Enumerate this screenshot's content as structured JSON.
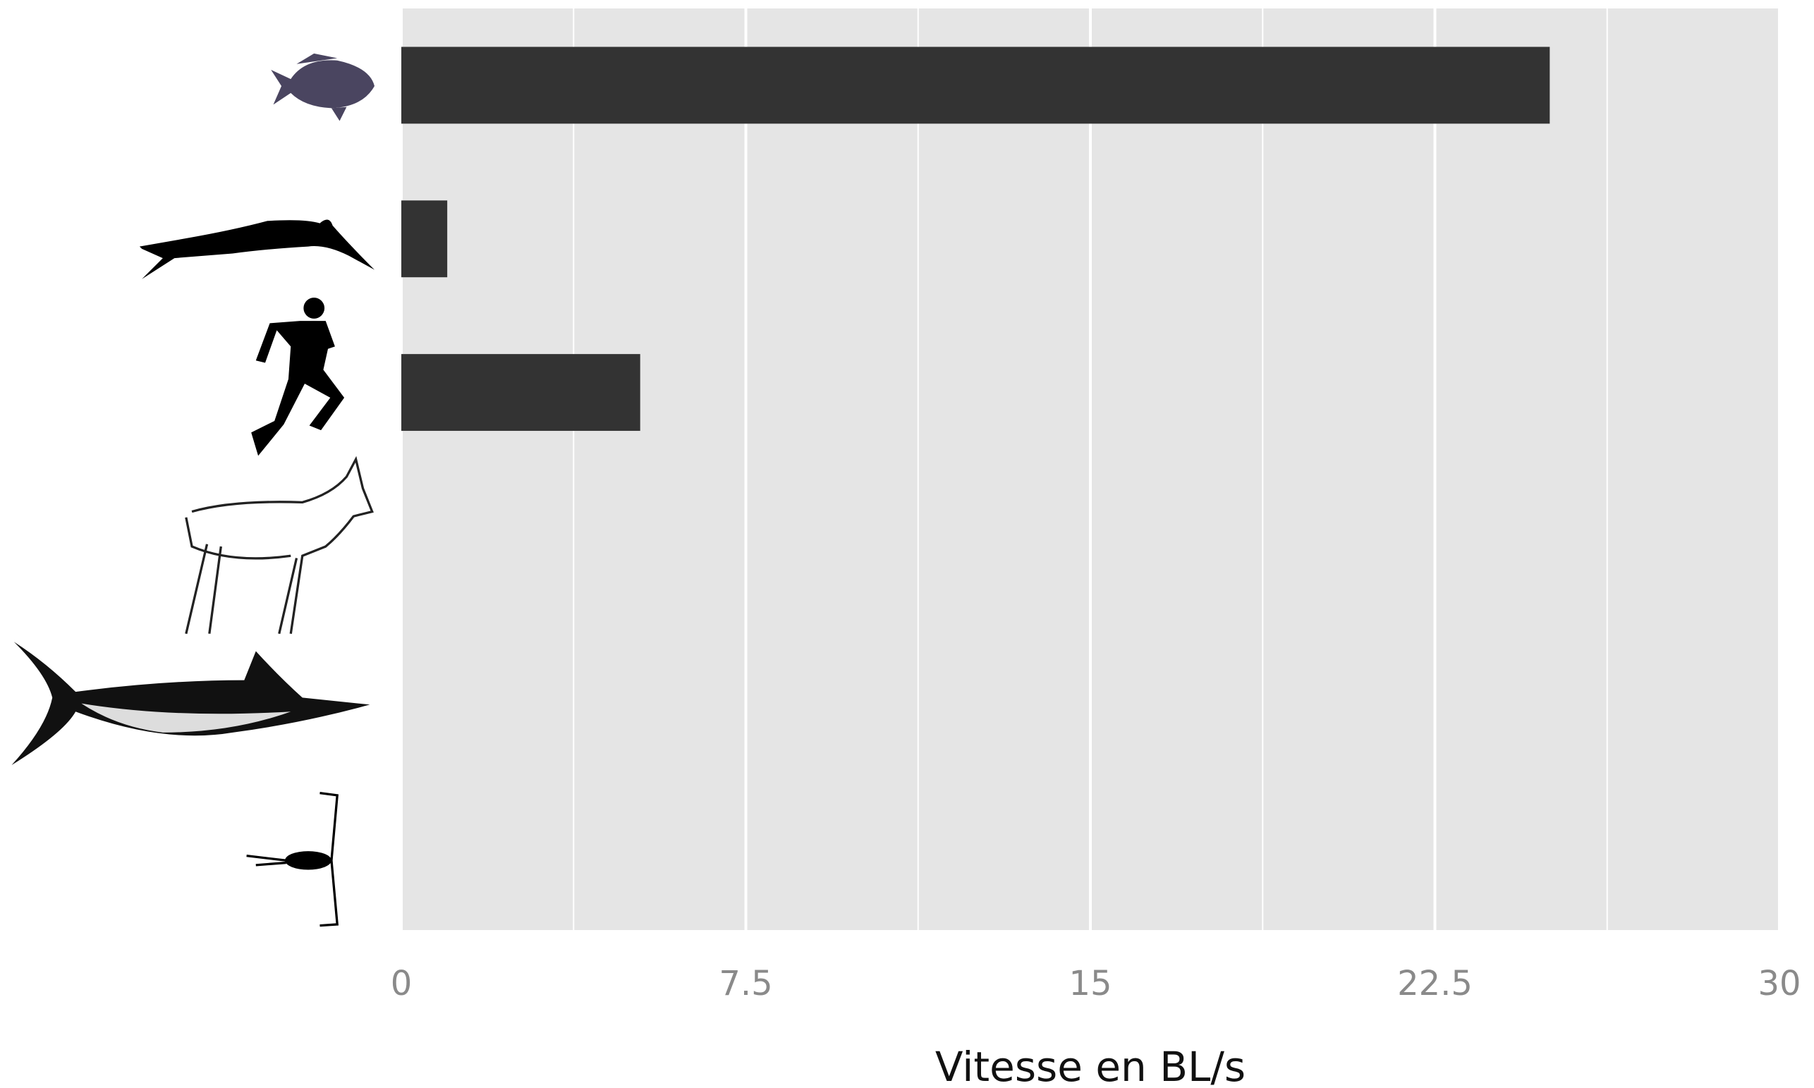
{
  "chart_data": {
    "type": "bar",
    "orientation": "horizontal",
    "x_label": "Vitesse en BL/s",
    "categories": [
      null,
      null,
      null,
      null,
      null,
      null
    ],
    "values": [
      25,
      1,
      5.2,
      null,
      null,
      null
    ],
    "color": "#333333",
    "xlim": [
      0,
      30
    ],
    "xticks": [
      0,
      7.5,
      15,
      22.5,
      30
    ],
    "grid": true
  }
}
